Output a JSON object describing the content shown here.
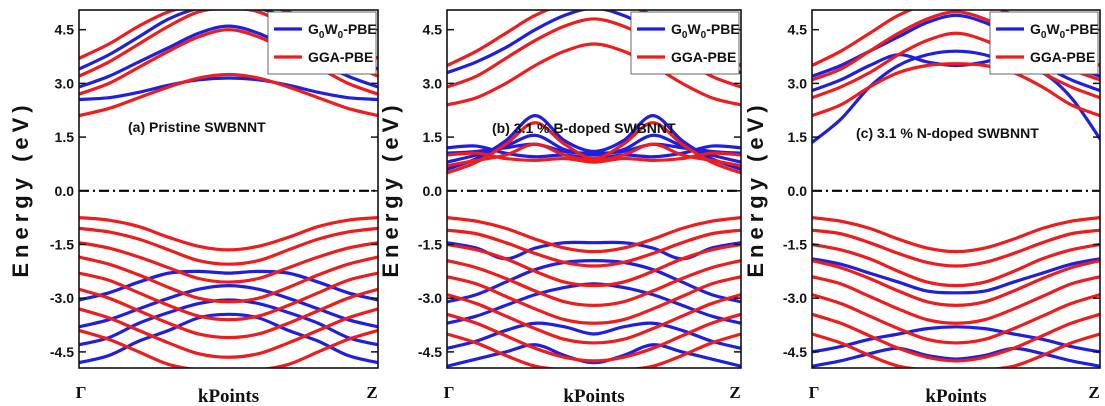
{
  "chart_data": {
    "type": "line",
    "colors": {
      "gw": "#1f1fe0",
      "gga": "#ee1c1c",
      "fermi": "#000000"
    },
    "legend": {
      "gw_label_main": "G",
      "gw_sub1": "0",
      "gw_mid": "W",
      "gw_sub2": "0",
      "gw_suffix": "-PBE",
      "gga_label": "GGA-PBE",
      "position": "top-right"
    },
    "shared": {
      "ylabel": "Energy (eV)",
      "xlabel": "kPoints",
      "xticks": [
        "Γ",
        "Z"
      ],
      "yticks": [
        4.5,
        3.0,
        1.5,
        0.0,
        -1.5,
        -3.0,
        -4.5
      ],
      "ytick_labels": [
        "4.5",
        "3.0",
        "1.5",
        "0.0",
        "-1.5",
        "-3.0",
        "-4.5"
      ],
      "ylim": [
        -4.95,
        5.05
      ],
      "xlim": [
        0,
        1
      ],
      "fermi_level": 0.0
    },
    "panels": [
      {
        "label": "(a) Pristine SWBNNT",
        "x": [
          0,
          0.1,
          0.2,
          0.3,
          0.4,
          0.5,
          0.6,
          0.7,
          0.8,
          0.9,
          1
        ],
        "series": [
          {
            "name": "G0W0-PBE",
            "bands": [
              [
                2.55,
                2.6,
                2.75,
                2.95,
                3.1,
                3.15,
                3.1,
                2.95,
                2.75,
                2.6,
                2.55
              ],
              [
                2.9,
                3.2,
                3.6,
                4.0,
                4.4,
                4.6,
                4.4,
                4.0,
                3.6,
                3.2,
                2.9
              ],
              [
                3.4,
                3.8,
                4.3,
                4.8,
                5.1,
                5.2,
                5.1,
                4.8,
                4.3,
                3.8,
                3.4
              ],
              [
                -3.05,
                -2.85,
                -2.55,
                -2.3,
                -2.25,
                -2.3,
                -2.25,
                -2.3,
                -2.55,
                -2.85,
                -3.05
              ],
              [
                -3.8,
                -3.6,
                -3.3,
                -3.0,
                -2.75,
                -2.65,
                -2.75,
                -3.0,
                -3.3,
                -3.6,
                -3.8
              ],
              [
                -4.3,
                -4.1,
                -3.7,
                -3.4,
                -3.15,
                -3.05,
                -3.15,
                -3.4,
                -3.7,
                -4.1,
                -4.3
              ],
              [
                -4.8,
                -4.6,
                -4.2,
                -3.9,
                -3.55,
                -3.45,
                -3.55,
                -3.9,
                -4.2,
                -4.6,
                -4.8
              ]
            ]
          },
          {
            "name": "GGA-PBE",
            "bands": [
              [
                2.1,
                2.3,
                2.6,
                2.9,
                3.15,
                3.25,
                3.15,
                2.9,
                2.6,
                2.3,
                2.1
              ],
              [
                2.7,
                3.0,
                3.45,
                3.9,
                4.3,
                4.5,
                4.3,
                3.9,
                3.45,
                3.0,
                2.7
              ],
              [
                3.2,
                3.6,
                4.1,
                4.6,
                5.0,
                5.1,
                5.0,
                4.6,
                4.1,
                3.6,
                3.2
              ],
              [
                3.7,
                4.1,
                4.6,
                5.0,
                5.2,
                5.2,
                5.2,
                5.0,
                4.6,
                4.1,
                3.7
              ],
              [
                -0.75,
                -0.82,
                -1.0,
                -1.3,
                -1.55,
                -1.65,
                -1.55,
                -1.3,
                -1.0,
                -0.82,
                -0.75
              ],
              [
                -1.05,
                -1.15,
                -1.35,
                -1.65,
                -1.95,
                -2.05,
                -1.95,
                -1.65,
                -1.35,
                -1.15,
                -1.05
              ],
              [
                -1.45,
                -1.6,
                -1.85,
                -2.15,
                -2.45,
                -2.55,
                -2.45,
                -2.15,
                -1.85,
                -1.6,
                -1.45
              ],
              [
                -1.85,
                -2.05,
                -2.35,
                -2.7,
                -3.0,
                -3.1,
                -3.0,
                -2.7,
                -2.35,
                -2.05,
                -1.85
              ],
              [
                -2.3,
                -2.5,
                -2.85,
                -3.2,
                -3.5,
                -3.6,
                -3.5,
                -3.2,
                -2.85,
                -2.5,
                -2.3
              ],
              [
                -2.75,
                -3.0,
                -3.35,
                -3.7,
                -4.0,
                -4.1,
                -4.0,
                -3.7,
                -3.35,
                -3.0,
                -2.75
              ],
              [
                -3.3,
                -3.55,
                -3.9,
                -4.25,
                -4.55,
                -4.65,
                -4.55,
                -4.25,
                -3.9,
                -3.55,
                -3.3
              ],
              [
                -3.9,
                -4.15,
                -4.5,
                -4.85,
                -5.0,
                -5.0,
                -5.0,
                -4.85,
                -4.5,
                -4.15,
                -3.9
              ]
            ]
          }
        ]
      },
      {
        "label": "(b) 3.1 % B-doped  SWBNNT",
        "x": [
          0,
          0.1,
          0.2,
          0.3,
          0.4,
          0.5,
          0.6,
          0.7,
          0.8,
          0.9,
          1
        ],
        "series": [
          {
            "name": "G0W0-PBE",
            "bands": [
              [
                0.6,
                0.9,
                1.4,
                2.1,
                1.4,
                1.1,
                1.4,
                2.1,
                1.4,
                0.9,
                0.6
              ],
              [
                0.8,
                1.0,
                1.25,
                1.55,
                1.15,
                1.0,
                1.15,
                1.55,
                1.25,
                1.0,
                0.8
              ],
              [
                1.05,
                1.1,
                1.2,
                1.3,
                1.1,
                1.05,
                1.1,
                1.3,
                1.2,
                1.1,
                1.05
              ],
              [
                1.2,
                1.25,
                1.05,
                0.95,
                1.0,
                0.9,
                1.0,
                0.95,
                1.05,
                1.25,
                1.2
              ],
              [
                3.3,
                3.6,
                4.0,
                4.5,
                4.9,
                5.1,
                4.9,
                4.5,
                4.0,
                3.6,
                3.3
              ],
              [
                -1.45,
                -1.6,
                -1.9,
                -1.6,
                -1.45,
                -1.45,
                -1.45,
                -1.6,
                -1.9,
                -1.6,
                -1.45
              ],
              [
                -3.1,
                -2.9,
                -2.55,
                -2.2,
                -2.0,
                -1.95,
                -2.0,
                -2.2,
                -2.55,
                -2.9,
                -3.1
              ],
              [
                -3.7,
                -3.5,
                -3.2,
                -2.9,
                -2.7,
                -2.6,
                -2.7,
                -2.9,
                -3.2,
                -3.5,
                -3.7
              ],
              [
                -4.4,
                -4.2,
                -3.9,
                -3.7,
                -3.8,
                -4.0,
                -3.8,
                -3.7,
                -3.9,
                -4.2,
                -4.4
              ],
              [
                -4.9,
                -4.7,
                -4.5,
                -4.3,
                -4.6,
                -4.8,
                -4.6,
                -4.3,
                -4.5,
                -4.7,
                -4.9
              ]
            ]
          },
          {
            "name": "GGA-PBE",
            "bands": [
              [
                0.5,
                0.8,
                1.3,
                1.9,
                1.3,
                0.9,
                1.3,
                1.9,
                1.3,
                0.8,
                0.5
              ],
              [
                0.7,
                0.85,
                1.0,
                1.3,
                1.0,
                0.85,
                1.0,
                1.3,
                1.0,
                0.85,
                0.7
              ],
              [
                1.0,
                1.05,
                0.9,
                0.85,
                0.9,
                0.8,
                0.9,
                0.85,
                0.9,
                1.05,
                1.0
              ],
              [
                2.4,
                2.6,
                3.0,
                3.5,
                3.9,
                4.1,
                3.9,
                3.5,
                3.0,
                2.6,
                2.4
              ],
              [
                2.9,
                3.2,
                3.7,
                4.2,
                4.6,
                4.8,
                4.6,
                4.2,
                3.7,
                3.2,
                2.9
              ],
              [
                3.5,
                3.9,
                4.4,
                4.9,
                5.2,
                5.2,
                5.2,
                4.9,
                4.4,
                3.9,
                3.5
              ],
              [
                -0.75,
                -0.85,
                -1.05,
                -1.35,
                -1.6,
                -1.7,
                -1.6,
                -1.35,
                -1.05,
                -0.85,
                -0.75
              ],
              [
                -1.1,
                -1.2,
                -1.45,
                -1.75,
                -2.0,
                -2.1,
                -2.0,
                -1.75,
                -1.45,
                -1.2,
                -1.1
              ],
              [
                -1.5,
                -1.65,
                -1.9,
                -2.25,
                -2.55,
                -2.65,
                -2.55,
                -2.25,
                -1.9,
                -1.65,
                -1.5
              ],
              [
                -1.95,
                -2.15,
                -2.45,
                -2.8,
                -3.1,
                -3.2,
                -3.1,
                -2.8,
                -2.45,
                -2.15,
                -1.95
              ],
              [
                -2.4,
                -2.6,
                -2.95,
                -3.3,
                -3.6,
                -3.7,
                -3.6,
                -3.3,
                -2.95,
                -2.6,
                -2.4
              ],
              [
                -2.9,
                -3.15,
                -3.5,
                -3.85,
                -4.15,
                -4.25,
                -4.15,
                -3.85,
                -3.5,
                -3.15,
                -2.9
              ],
              [
                -3.45,
                -3.7,
                -4.05,
                -4.4,
                -4.65,
                -4.75,
                -4.65,
                -4.4,
                -4.05,
                -3.7,
                -3.45
              ],
              [
                -4.0,
                -4.25,
                -4.6,
                -4.9,
                -5.0,
                -5.0,
                -5.0,
                -4.9,
                -4.6,
                -4.25,
                -4.0
              ]
            ]
          }
        ]
      },
      {
        "label": "(c) 3.1 % N-doped  SWBNNT",
        "x": [
          0,
          0.1,
          0.2,
          0.3,
          0.4,
          0.5,
          0.6,
          0.7,
          0.8,
          0.9,
          1
        ],
        "series": [
          {
            "name": "G0W0-PBE",
            "bands": [
              [
                1.35,
                2.0,
                2.9,
                3.5,
                3.8,
                3.9,
                3.8,
                3.5,
                3.3,
                2.6,
                1.45
              ],
              [
                2.8,
                3.1,
                3.5,
                3.8,
                3.6,
                3.5,
                3.6,
                3.8,
                3.5,
                3.1,
                2.8
              ],
              [
                3.2,
                3.5,
                3.9,
                4.3,
                4.7,
                4.9,
                4.7,
                4.3,
                3.9,
                3.5,
                3.2
              ],
              [
                -1.9,
                -2.05,
                -2.3,
                -2.55,
                -2.8,
                -2.85,
                -2.8,
                -2.55,
                -2.3,
                -2.05,
                -1.9
              ],
              [
                -4.5,
                -4.35,
                -4.15,
                -4.0,
                -3.85,
                -3.8,
                -3.85,
                -4.0,
                -4.15,
                -4.35,
                -4.5
              ],
              [
                -4.9,
                -4.75,
                -4.55,
                -4.4,
                -4.6,
                -4.7,
                -4.6,
                -4.4,
                -4.55,
                -4.75,
                -4.9
              ]
            ]
          },
          {
            "name": "GGA-PBE",
            "bands": [
              [
                2.1,
                2.4,
                2.9,
                3.3,
                3.5,
                3.55,
                3.5,
                3.3,
                2.9,
                2.4,
                2.1
              ],
              [
                2.6,
                2.9,
                3.3,
                3.8,
                4.2,
                4.4,
                4.2,
                3.8,
                3.3,
                2.9,
                2.6
              ],
              [
                3.1,
                3.4,
                3.9,
                4.4,
                4.8,
                5.0,
                4.8,
                4.4,
                3.9,
                3.4,
                3.1
              ],
              [
                3.5,
                3.9,
                4.4,
                4.9,
                5.2,
                5.2,
                5.2,
                4.9,
                4.4,
                3.9,
                3.5
              ],
              [
                -0.75,
                -0.85,
                -1.05,
                -1.35,
                -1.6,
                -1.7,
                -1.6,
                -1.35,
                -1.05,
                -0.85,
                -0.75
              ],
              [
                -1.1,
                -1.2,
                -1.45,
                -1.75,
                -2.0,
                -2.1,
                -2.0,
                -1.75,
                -1.45,
                -1.2,
                -1.1
              ],
              [
                -1.5,
                -1.65,
                -1.9,
                -2.25,
                -2.55,
                -2.65,
                -2.55,
                -2.25,
                -1.9,
                -1.65,
                -1.5
              ],
              [
                -1.95,
                -2.15,
                -2.45,
                -2.8,
                -3.1,
                -3.2,
                -3.1,
                -2.8,
                -2.45,
                -2.15,
                -1.95
              ],
              [
                -2.4,
                -2.6,
                -2.95,
                -3.3,
                -3.6,
                -3.7,
                -3.6,
                -3.3,
                -2.95,
                -2.6,
                -2.4
              ],
              [
                -2.9,
                -3.15,
                -3.5,
                -3.85,
                -4.15,
                -4.25,
                -4.15,
                -3.85,
                -3.5,
                -3.15,
                -2.9
              ],
              [
                -3.45,
                -3.7,
                -4.05,
                -4.4,
                -4.65,
                -4.75,
                -4.65,
                -4.4,
                -4.05,
                -3.7,
                -3.45
              ],
              [
                -4.0,
                -4.25,
                -4.6,
                -4.9,
                -5.0,
                -5.0,
                -5.0,
                -4.9,
                -4.6,
                -4.25,
                -4.0
              ]
            ]
          }
        ]
      }
    ]
  }
}
